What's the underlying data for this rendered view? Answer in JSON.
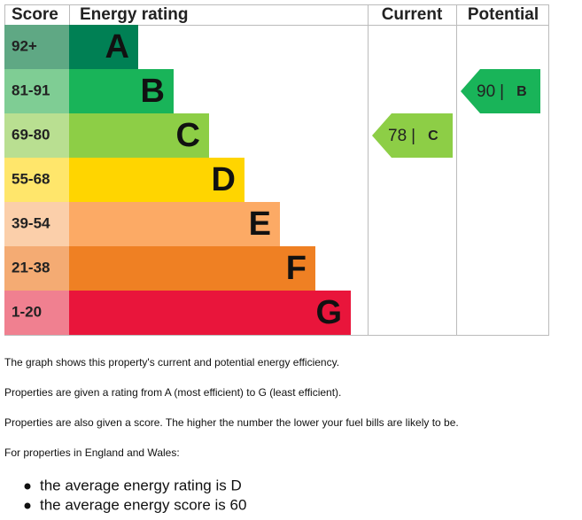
{
  "header": {
    "score": "Score",
    "rating": "Energy rating",
    "current": "Current",
    "potential": "Potential"
  },
  "bands": [
    {
      "score": "92+",
      "letter": "A",
      "color": "#008054",
      "score_color": "#5fa884"
    },
    {
      "score": "81-91",
      "letter": "B",
      "color": "#19b459",
      "score_color": "#7fcd94"
    },
    {
      "score": "69-80",
      "letter": "C",
      "color": "#8dce46",
      "score_color": "#b9df91"
    },
    {
      "score": "55-68",
      "letter": "D",
      "color": "#ffd500",
      "score_color": "#ffe66b"
    },
    {
      "score": "39-54",
      "letter": "E",
      "color": "#fcaa65",
      "score_color": "#fbcfaa"
    },
    {
      "score": "21-38",
      "letter": "F",
      "color": "#ef8023",
      "score_color": "#f4ab73"
    },
    {
      "score": "1-20",
      "letter": "G",
      "color": "#e9153b",
      "score_color": "#f08090"
    }
  ],
  "current": {
    "score": "78",
    "separator": "|",
    "letter": "C"
  },
  "potential": {
    "score": "90",
    "separator": "|",
    "letter": "B"
  },
  "paragraphs": [
    "The graph shows this property's current and potential energy efficiency.",
    "Properties are given a rating from A (most efficient) to G (least efficient).",
    "Properties are also given a score. The higher the number the lower your fuel bills are likely to be.",
    "For properties in England and Wales:"
  ],
  "bullets": [
    "the average energy rating is D",
    "the average energy score is 60"
  ]
}
